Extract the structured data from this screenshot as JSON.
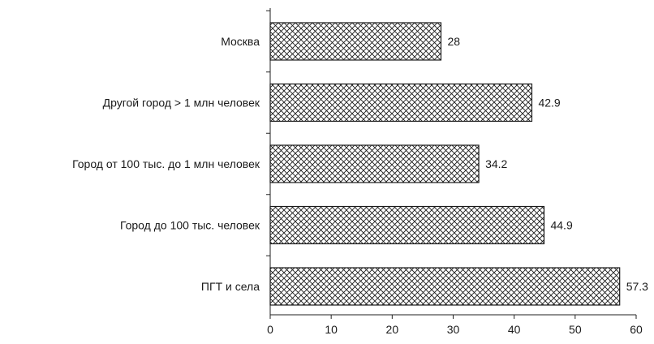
{
  "chart_data": {
    "type": "bar",
    "orientation": "horizontal",
    "categories": [
      "Москва",
      "Другой город > 1 млн человек",
      "Город от 100 тыс. до 1 млн человек",
      "Город до 100 тыс. человек",
      "ПГТ и села"
    ],
    "values": [
      28,
      42.9,
      34.2,
      44.9,
      57.3
    ],
    "value_labels": [
      "28",
      "42.9",
      "34.2",
      "44.9",
      "57.3"
    ],
    "x_ticks": [
      "0",
      "10",
      "20",
      "30",
      "40",
      "50",
      "60"
    ],
    "xlim": [
      0,
      60
    ],
    "title": "",
    "xlabel": "",
    "ylabel": "",
    "grid": false,
    "legend": "none",
    "bar_fill": "crosshatch",
    "colors": {
      "bar_stroke": "#1a1a1a",
      "hatch": "#1a1a1a",
      "background": "#ffffff",
      "text": "#1a1a1a"
    }
  }
}
